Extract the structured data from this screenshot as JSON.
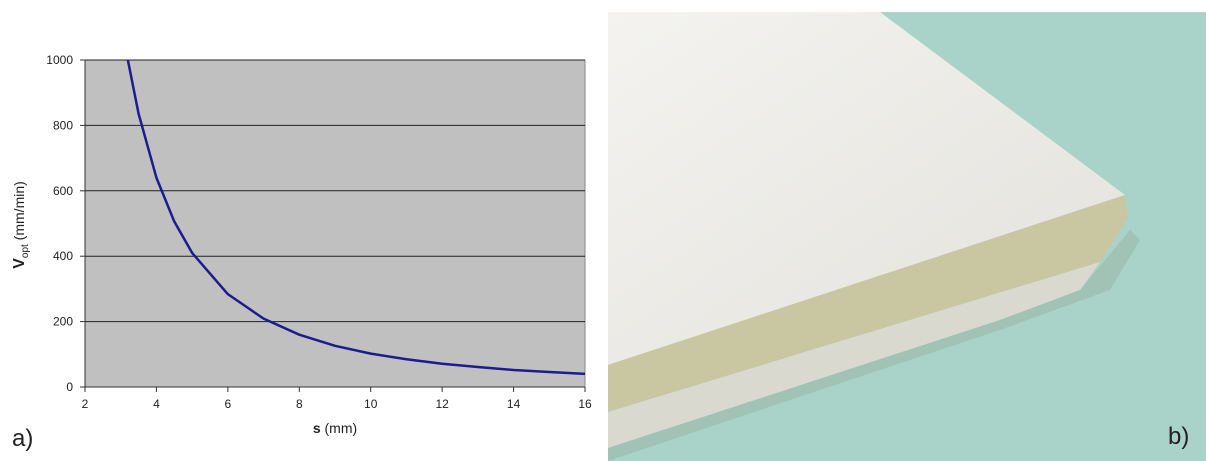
{
  "chart_data": {
    "type": "line",
    "xlabel": {
      "main": "s",
      "unit": "(mm)"
    },
    "ylabel": {
      "main": "V",
      "sub": "opt",
      "unit": "(mm/min)"
    },
    "x": [
      3.2,
      3.5,
      4,
      4.5,
      5,
      6,
      7,
      8,
      9,
      10,
      11,
      12,
      13,
      14,
      15,
      16
    ],
    "series": [
      {
        "color": "#1c1c8e",
        "values": [
          1000,
          836,
          640,
          506,
          410,
          284,
          209,
          160,
          126,
          102,
          85,
          71,
          61,
          52,
          46,
          40
        ]
      }
    ],
    "xlim": [
      2,
      16
    ],
    "xticks": [
      2,
      4,
      6,
      8,
      10,
      12,
      14,
      16
    ],
    "ylim": [
      0,
      1000
    ],
    "yticks": [
      0,
      200,
      400,
      600,
      800,
      1000
    ],
    "grid": true,
    "plot_background": "#c0c0c0"
  },
  "panels": [
    "a)",
    "b)"
  ]
}
